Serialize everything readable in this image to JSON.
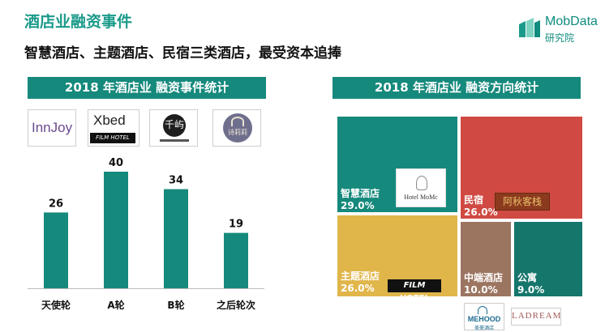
{
  "header": {
    "title": "酒店业融资事件",
    "subtitle": "智慧酒店、主题酒店、民宿三类酒店，最受资本追捧",
    "brand_name": "MobData",
    "brand_sub": "研究院"
  },
  "left_panel": {
    "banner": "2018 年酒店业 融资事件统计",
    "logos": [
      {
        "name": "InnJoy"
      },
      {
        "name": "Xbed",
        "caption": "FILM HOTEL"
      },
      {
        "name": "千屿",
        "char": "千屿"
      },
      {
        "name": "诗莉莉",
        "char": "诗莉莉"
      }
    ]
  },
  "right_panel": {
    "banner": "2018 年酒店业 融资方向统计",
    "image_texts": {
      "momc": "Hotel MoMc",
      "film": "FILM HOTEL",
      "minsu": "阿秋客栈",
      "mehood": "MEHOOD",
      "mehood_sub": "美豪酒店",
      "ladream": "LADREAM"
    }
  },
  "colors": {
    "accent": "#15897c",
    "smart": "#15897c",
    "theme": "#e0b64a",
    "minsu": "#d04a43",
    "midrange": "#9c7561",
    "apartment": "#15766c"
  },
  "chart_data": [
    {
      "type": "bar",
      "title": "2018 年酒店业 融资事件统计",
      "categories": [
        "天使轮",
        "A轮",
        "B轮",
        "之后轮次"
      ],
      "values": [
        26,
        40,
        34,
        19
      ],
      "ylim": [
        0,
        40
      ],
      "grid": false,
      "legend": "none"
    },
    {
      "type": "treemap",
      "title": "2018 年酒店业 融资方向统计",
      "categories": [
        "智慧酒店",
        "主题酒店",
        "民宿",
        "中端酒店",
        "公寓"
      ],
      "values": [
        29.0,
        26.0,
        26.0,
        10.0,
        9.0
      ],
      "labels": [
        "29.0%",
        "26.0%",
        "26.0%",
        "10.0%",
        "9.0%"
      ],
      "unit": "%"
    }
  ]
}
